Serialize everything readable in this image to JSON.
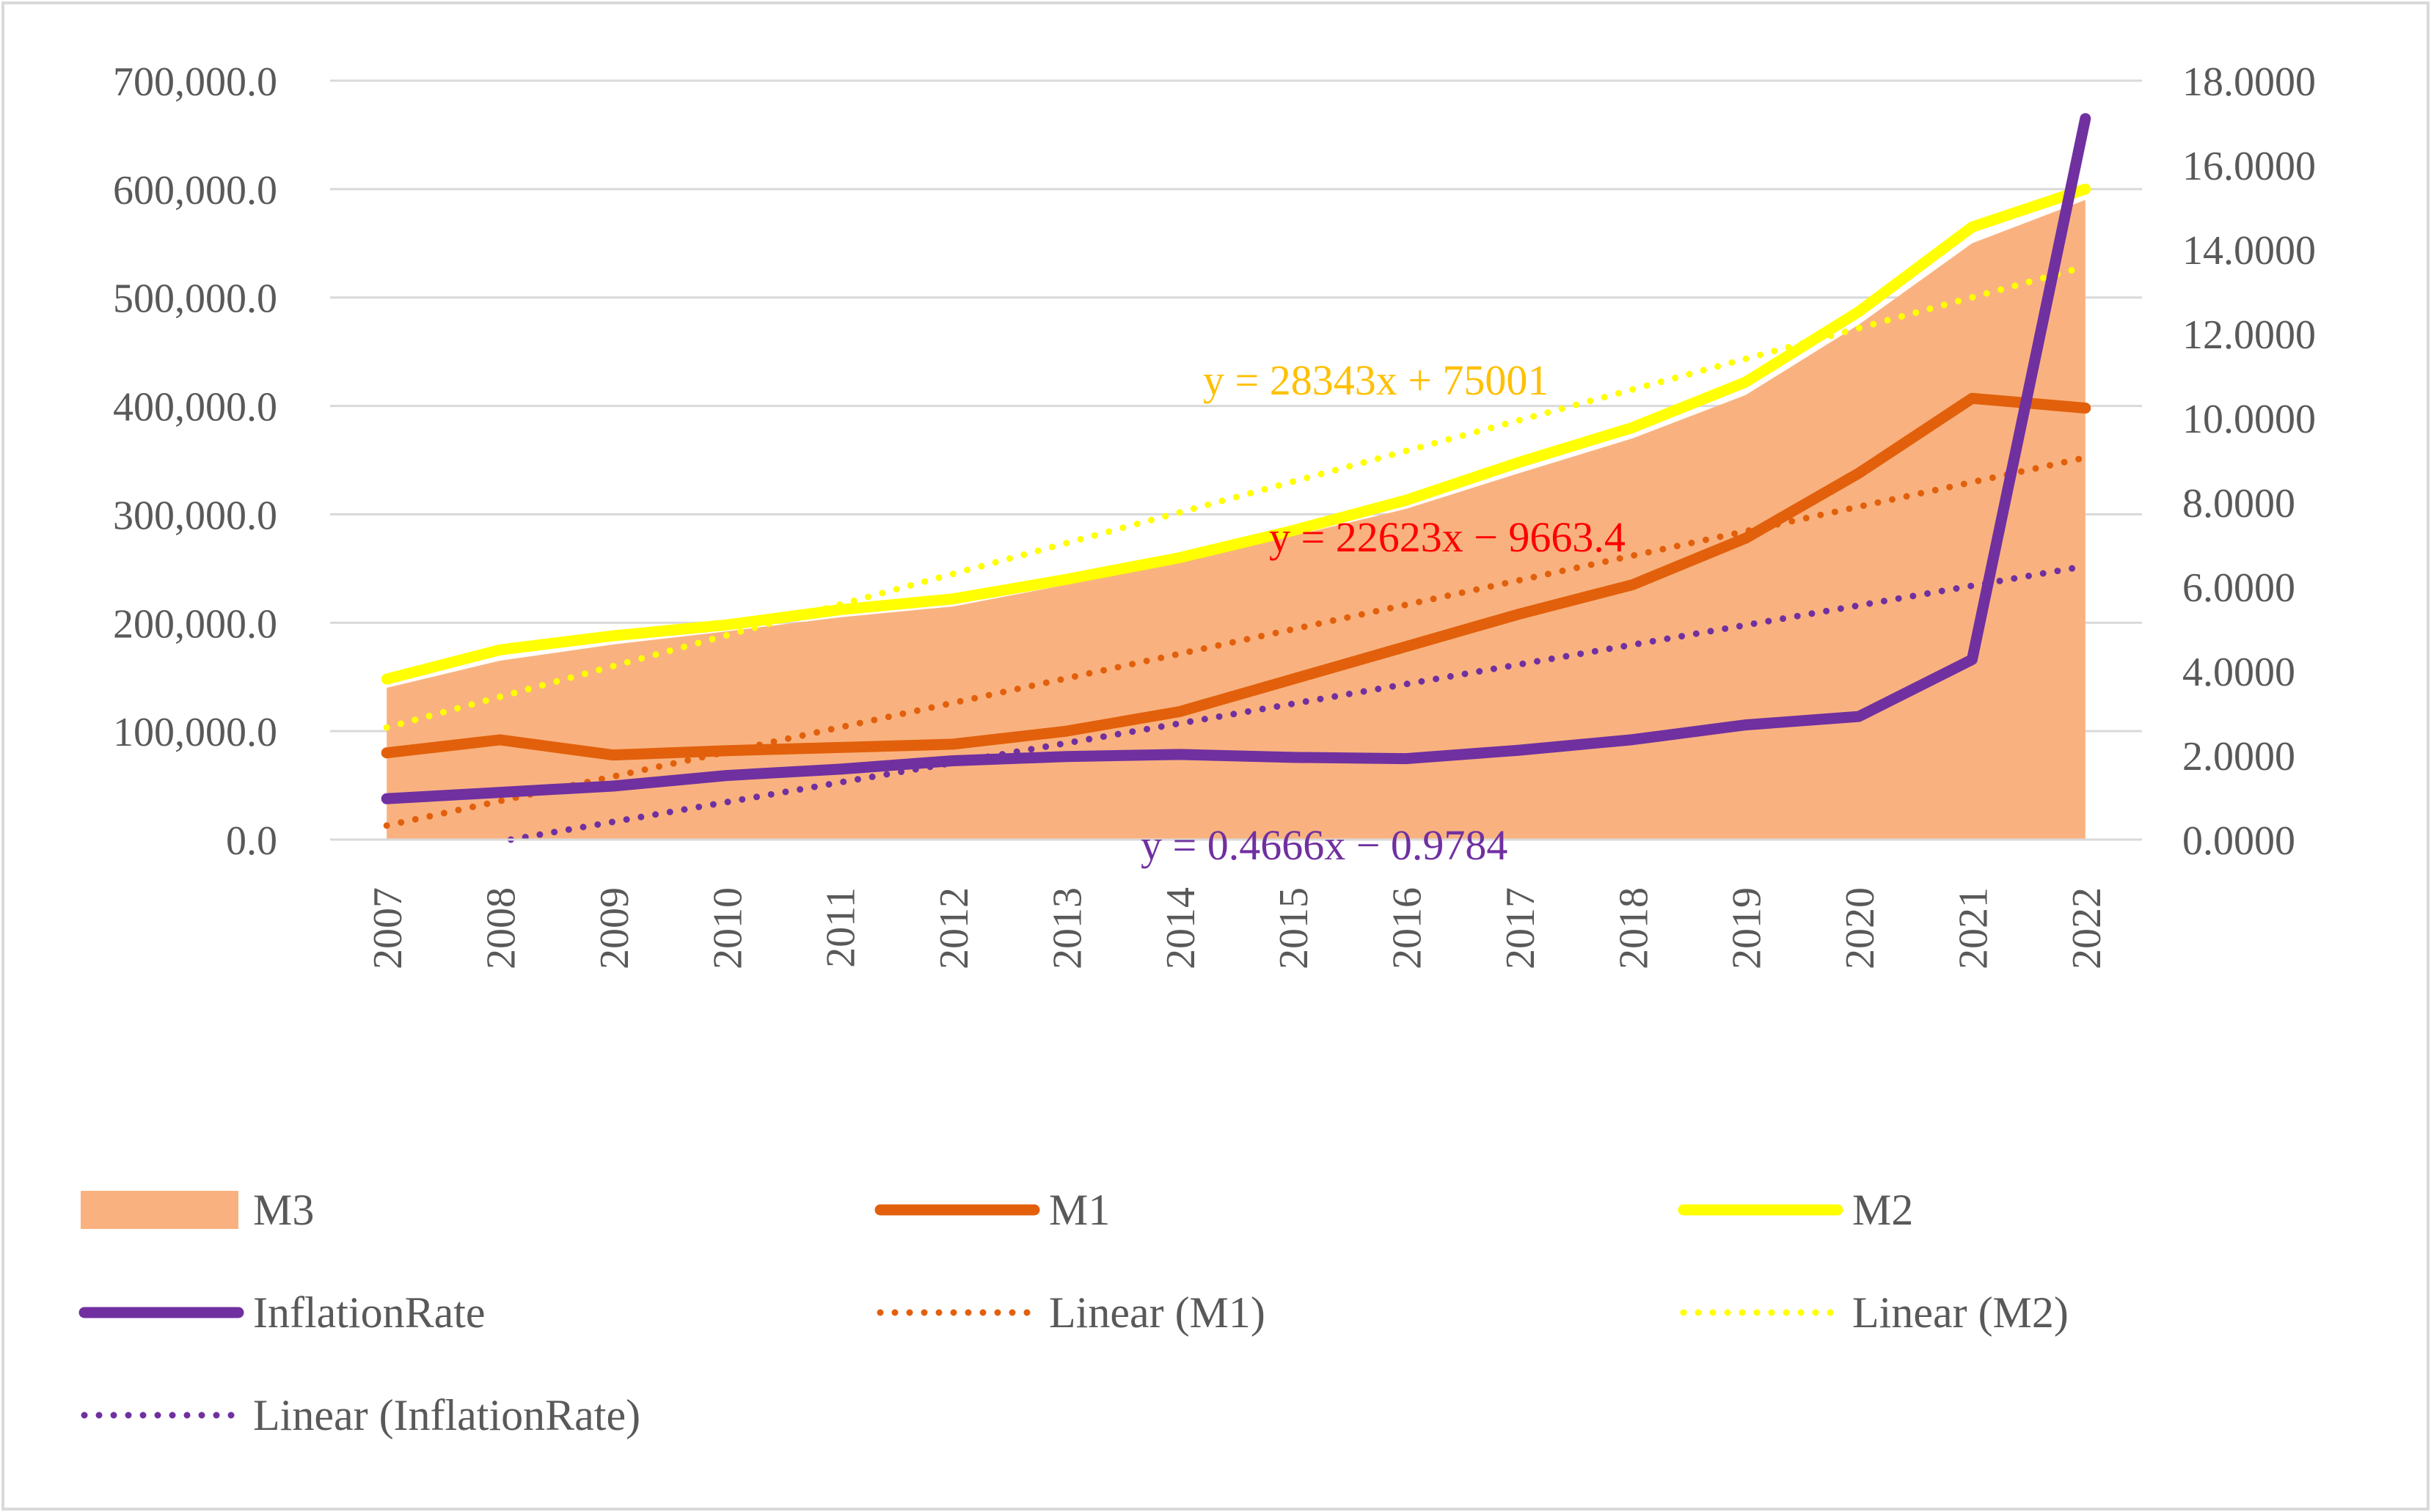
{
  "chart_data": {
    "type": "area+line",
    "title": "",
    "categories": [
      "2007",
      "2008",
      "2009",
      "2010",
      "2011",
      "2012",
      "2013",
      "2014",
      "2015",
      "2016",
      "2017",
      "2018",
      "2019",
      "2020",
      "2021",
      "2022"
    ],
    "primary_axis": {
      "ylim": [
        0,
        700000
      ],
      "ticks": [
        "0.0",
        "100,000.0",
        "200,000.0",
        "300,000.0",
        "400,000.0",
        "500,000.0",
        "600,000.0",
        "700,000.0"
      ],
      "tick_values": [
        0,
        100000,
        200000,
        300000,
        400000,
        500000,
        600000,
        700000
      ]
    },
    "secondary_axis": {
      "ylim": [
        0,
        18
      ],
      "ticks": [
        "0.0000",
        "2.0000",
        "4.0000",
        "6.0000",
        "8.0000",
        "10.0000",
        "12.0000",
        "14.0000",
        "16.0000",
        "18.0000"
      ],
      "tick_values": [
        0,
        2,
        4,
        6,
        8,
        10,
        12,
        14,
        16,
        18
      ]
    },
    "series": [
      {
        "name": "M3",
        "kind": "area",
        "axis": "primary",
        "color": "#F9B27F",
        "values": [
          140000,
          165000,
          180000,
          192000,
          205000,
          215000,
          235000,
          255000,
          280000,
          305000,
          338000,
          370000,
          410000,
          475000,
          550000,
          590000
        ]
      },
      {
        "name": "M1",
        "kind": "line",
        "axis": "primary",
        "color": "#E2600C",
        "values": [
          80000,
          92000,
          78000,
          82000,
          85000,
          88000,
          100000,
          118000,
          148000,
          178000,
          208000,
          235000,
          278000,
          338000,
          407000,
          398000
        ]
      },
      {
        "name": "M2",
        "kind": "line",
        "axis": "primary",
        "color": "#FFFF00",
        "values": [
          148000,
          175000,
          188000,
          198000,
          212000,
          222000,
          240000,
          260000,
          285000,
          313000,
          348000,
          380000,
          422000,
          487000,
          565000,
          600000
        ]
      },
      {
        "name": "InflationRate",
        "kind": "line",
        "axis": "secondary",
        "color": "#7030A0",
        "values": [
          0.97,
          1.12,
          1.27,
          1.52,
          1.67,
          1.87,
          1.97,
          2.02,
          1.95,
          1.92,
          2.12,
          2.37,
          2.72,
          2.92,
          4.27,
          17.1
        ]
      }
    ],
    "trendlines": [
      {
        "name": "Linear (M1)",
        "of": "M1",
        "axis": "primary",
        "slope": 22623,
        "intercept": -9663.4,
        "equation": "y = 22623x − 9663.4",
        "color": "#E2600C",
        "label_color": "#FF0000"
      },
      {
        "name": "Linear (M2)",
        "of": "M2",
        "axis": "primary",
        "slope": 28343,
        "intercept": 75001,
        "equation": "y = 28343x + 75001",
        "color": "#FFFF00",
        "label_color": "#FFC000"
      },
      {
        "name": "Linear (InflationRate)",
        "of": "InflationRate",
        "axis": "secondary",
        "slope": 0.4666,
        "intercept": -0.9784,
        "equation": "y = 0.4666x − 0.9784",
        "color": "#7030A0",
        "label_color": "#7030A0"
      }
    ],
    "legend": {
      "placement": "bottom",
      "entries": [
        "M3",
        "M1",
        "M2",
        "InflationRate",
        "Linear (M1)",
        "Linear (M2)",
        "Linear (InflationRate)"
      ]
    },
    "grid": true
  }
}
